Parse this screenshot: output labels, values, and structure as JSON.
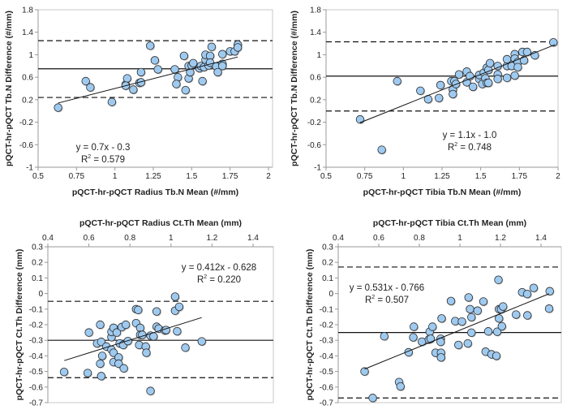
{
  "chart_data": [
    {
      "type": "scatter",
      "title": "",
      "xlabel": "pQCT-hr-pQCT Radius Tb.N Mean (#/mm)",
      "ylabel": "pQCT-hr-pQCT Tb.N Difference (#/mm)",
      "xlim": [
        0.5,
        2
      ],
      "ylim": [
        -1,
        1.8
      ],
      "xticks": [
        "0.5",
        "0.75",
        "1",
        "1.25",
        "1.5",
        "1.75",
        "2"
      ],
      "yticks": [
        "-1",
        "-0.6",
        "-0.2",
        "0.2",
        "0.6",
        "1",
        "1.4",
        "1.8"
      ],
      "x_axis_position": "bottom",
      "equation": "y = 0.7x - 0.3",
      "r2_label": "R",
      "r2_value": " = 0.579",
      "trend": {
        "slope": 0.7,
        "intercept": -0.3,
        "x_range": [
          0.63,
          1.8
        ]
      },
      "mean_diff": 0.75,
      "upper_loa": 1.25,
      "lower_loa": 0.24,
      "points": [
        [
          0.63,
          0.06
        ],
        [
          0.81,
          0.53
        ],
        [
          0.84,
          0.42
        ],
        [
          0.98,
          0.16
        ],
        [
          1.07,
          0.47
        ],
        [
          1.08,
          0.58
        ],
        [
          1.07,
          0.45
        ],
        [
          1.12,
          0.38
        ],
        [
          1.16,
          0.5
        ],
        [
          1.17,
          0.51
        ],
        [
          1.17,
          0.69
        ],
        [
          1.23,
          1.16
        ],
        [
          1.26,
          0.9
        ],
        [
          1.28,
          0.74
        ],
        [
          1.39,
          0.74
        ],
        [
          1.41,
          0.6
        ],
        [
          1.4,
          0.48
        ],
        [
          1.45,
          0.98
        ],
        [
          1.46,
          0.37
        ],
        [
          1.48,
          0.8
        ],
        [
          1.48,
          0.58
        ],
        [
          1.49,
          0.69
        ],
        [
          1.5,
          0.81
        ],
        [
          1.51,
          0.85
        ],
        [
          1.55,
          0.76
        ],
        [
          1.56,
          0.8
        ],
        [
          1.57,
          0.53
        ],
        [
          1.58,
          0.78
        ],
        [
          1.59,
          0.91
        ],
        [
          1.59,
          1.0
        ],
        [
          1.61,
          0.81
        ],
        [
          1.62,
          0.98
        ],
        [
          1.62,
          0.86
        ],
        [
          1.63,
          1.14
        ],
        [
          1.66,
          0.79
        ],
        [
          1.67,
          0.69
        ],
        [
          1.7,
          1.01
        ],
        [
          1.7,
          0.84
        ],
        [
          1.7,
          0.8
        ],
        [
          1.75,
          1.06
        ],
        [
          1.78,
          1.06
        ],
        [
          1.8,
          1.18
        ],
        [
          1.8,
          1.13
        ]
      ]
    },
    {
      "type": "scatter",
      "title": "",
      "xlabel": "pQCT-hr-pQCT Tibia Tb.N Mean (#/mm)",
      "ylabel": "pQCT-hr-pQCT Tb.N Difference (#/mm)",
      "xlim": [
        0.5,
        2
      ],
      "ylim": [
        -1,
        1.8
      ],
      "xticks": [
        "0.5",
        "0.75",
        "1",
        "1.25",
        "1.5",
        "1.75",
        "2"
      ],
      "yticks": [
        "-1",
        "-0.6",
        "-0.2",
        "0.2",
        "0.6",
        "1",
        "1.4",
        "1.8"
      ],
      "x_axis_position": "bottom",
      "equation": "y = 1.1x - 1.0",
      "r2_label": "R",
      "r2_value": " = 0.748",
      "trend": {
        "slope": 1.1,
        "intercept": -1.0,
        "x_range": [
          0.72,
          1.98
        ]
      },
      "mean_diff": 0.62,
      "upper_loa": 1.23,
      "lower_loa": 0.0,
      "points": [
        [
          0.72,
          -0.15
        ],
        [
          0.86,
          -0.69
        ],
        [
          0.96,
          0.53
        ],
        [
          1.11,
          0.36
        ],
        [
          1.16,
          0.21
        ],
        [
          1.23,
          0.23
        ],
        [
          1.24,
          0.46
        ],
        [
          1.31,
          0.53
        ],
        [
          1.32,
          0.38
        ],
        [
          1.32,
          0.3
        ],
        [
          1.33,
          0.53
        ],
        [
          1.34,
          0.48
        ],
        [
          1.36,
          0.65
        ],
        [
          1.41,
          0.7
        ],
        [
          1.41,
          0.51
        ],
        [
          1.43,
          0.62
        ],
        [
          1.45,
          0.43
        ],
        [
          1.49,
          0.57
        ],
        [
          1.49,
          0.64
        ],
        [
          1.51,
          0.48
        ],
        [
          1.52,
          0.68
        ],
        [
          1.53,
          0.58
        ],
        [
          1.54,
          0.77
        ],
        [
          1.54,
          0.5
        ],
        [
          1.55,
          0.73
        ],
        [
          1.55,
          0.5
        ],
        [
          1.56,
          0.85
        ],
        [
          1.61,
          0.8
        ],
        [
          1.61,
          0.65
        ],
        [
          1.61,
          0.57
        ],
        [
          1.67,
          0.59
        ],
        [
          1.67,
          0.8
        ],
        [
          1.67,
          0.92
        ],
        [
          1.7,
          0.8
        ],
        [
          1.72,
          1.01
        ],
        [
          1.72,
          0.63
        ],
        [
          1.72,
          0.93
        ],
        [
          1.74,
          0.87
        ],
        [
          1.74,
          0.78
        ],
        [
          1.77,
          1.05
        ],
        [
          1.78,
          0.9
        ],
        [
          1.8,
          1.05
        ],
        [
          1.85,
          0.99
        ],
        [
          1.97,
          1.22
        ]
      ]
    },
    {
      "type": "scatter",
      "title": "",
      "xlabel": "pQCT-hr-pQCT Radius Ct.Th Mean (mm)",
      "ylabel": "pQCT-hr-pQCT Ct.Th Difference (mm)",
      "xlim": [
        0.4,
        1.4
      ],
      "ylim": [
        -0.7,
        0.3
      ],
      "xticks": [
        "0.4",
        "0.6",
        "0.8",
        "1",
        "1.2",
        "1.4"
      ],
      "yticks": [
        "-0.7",
        "-0.6",
        "-0.5",
        "-0.4",
        "-0.3",
        "-0.2",
        "-0.1",
        "0",
        "0.1",
        "0.2",
        "0.3"
      ],
      "x_axis_position": "top",
      "equation": "y = 0.412x - 0.628",
      "r2_label": "R",
      "r2_value": " = 0.220",
      "trend": {
        "slope": 0.412,
        "intercept": -0.628,
        "x_range": [
          0.48,
          1.15
        ]
      },
      "mean_diff": -0.3,
      "upper_loa": -0.05,
      "lower_loa": -0.54,
      "points": [
        [
          0.479,
          -0.503
        ],
        [
          0.594,
          -0.51
        ],
        [
          0.6,
          -0.25
        ],
        [
          0.64,
          -0.32
        ],
        [
          0.655,
          -0.2
        ],
        [
          0.655,
          -0.45
        ],
        [
          0.66,
          -0.31
        ],
        [
          0.66,
          -0.53
        ],
        [
          0.665,
          -0.4
        ],
        [
          0.685,
          -0.34
        ],
        [
          0.71,
          -0.28
        ],
        [
          0.71,
          -0.245
        ],
        [
          0.71,
          -0.36
        ],
        [
          0.72,
          -0.22
        ],
        [
          0.72,
          -0.38
        ],
        [
          0.72,
          -0.44
        ],
        [
          0.736,
          -0.25
        ],
        [
          0.745,
          -0.41
        ],
        [
          0.745,
          -0.45
        ],
        [
          0.75,
          -0.32
        ],
        [
          0.76,
          -0.215
        ],
        [
          0.767,
          -0.33
        ],
        [
          0.77,
          -0.48
        ],
        [
          0.78,
          -0.2
        ],
        [
          0.79,
          -0.305
        ],
        [
          0.83,
          -0.1
        ],
        [
          0.83,
          -0.19
        ],
        [
          0.84,
          -0.105
        ],
        [
          0.845,
          -0.33
        ],
        [
          0.85,
          -0.22
        ],
        [
          0.85,
          -0.265
        ],
        [
          0.86,
          -0.265
        ],
        [
          0.877,
          -0.34
        ],
        [
          0.88,
          -0.38
        ],
        [
          0.9,
          -0.625
        ],
        [
          0.9,
          -0.27
        ],
        [
          0.915,
          -0.275
        ],
        [
          0.93,
          -0.115
        ],
        [
          0.93,
          -0.213
        ],
        [
          0.94,
          -0.225
        ],
        [
          0.97,
          -0.237
        ],
        [
          0.976,
          -0.234
        ],
        [
          1.02,
          -0.02
        ],
        [
          1.02,
          -0.11
        ],
        [
          1.04,
          -0.085
        ],
        [
          1.03,
          -0.242
        ],
        [
          1.07,
          -0.347
        ],
        [
          1.15,
          -0.307
        ]
      ]
    },
    {
      "type": "scatter",
      "title": "",
      "xlabel": "pQCT-hr-pQCT Tibia Ct.Th Mean (mm)",
      "ylabel": "pQCT-hr-pQCT Ct.Th Difference (mm)",
      "xlim": [
        0.4,
        1.4
      ],
      "ylim": [
        -0.7,
        0.3
      ],
      "xticks": [
        "0.4",
        "0.6",
        "0.8",
        "1",
        "1.2",
        "1.4"
      ],
      "yticks": [
        "-0.7",
        "-0.6",
        "-0.5",
        "-0.4",
        "-0.3",
        "-0.2",
        "-0.1",
        "0",
        "0.1",
        "0.2",
        "0.3"
      ],
      "x_axis_position": "top",
      "equation": "y = 0.531x - 0.766",
      "r2_label": "R",
      "r2_value": " = 0.507",
      "trend": {
        "slope": 0.531,
        "intercept": -0.766,
        "x_range": [
          0.53,
          1.44
        ]
      },
      "mean_diff": -0.25,
      "upper_loa": 0.17,
      "lower_loa": -0.67,
      "points": [
        [
          0.53,
          -0.5
        ],
        [
          0.57,
          -0.67
        ],
        [
          0.627,
          -0.274
        ],
        [
          0.7,
          -0.568
        ],
        [
          0.707,
          -0.596
        ],
        [
          0.747,
          -0.377
        ],
        [
          0.773,
          -0.213
        ],
        [
          0.77,
          -0.281
        ],
        [
          0.813,
          -0.309
        ],
        [
          0.847,
          -0.295
        ],
        [
          0.851,
          -0.245
        ],
        [
          0.856,
          -0.29
        ],
        [
          0.865,
          -0.213
        ],
        [
          0.88,
          -0.38
        ],
        [
          0.905,
          -0.29
        ],
        [
          0.905,
          -0.31
        ],
        [
          0.907,
          -0.38
        ],
        [
          0.907,
          -0.41
        ],
        [
          0.91,
          -0.16
        ],
        [
          0.956,
          -0.048
        ],
        [
          0.977,
          -0.177
        ],
        [
          0.993,
          -0.33
        ],
        [
          1.01,
          -0.18
        ],
        [
          1.039,
          -0.32
        ],
        [
          1.043,
          -0.025
        ],
        [
          1.05,
          -0.1
        ],
        [
          1.057,
          -0.152
        ],
        [
          1.057,
          -0.251
        ],
        [
          1.087,
          -0.11
        ],
        [
          1.116,
          -0.051
        ],
        [
          1.127,
          -0.373
        ],
        [
          1.14,
          -0.243
        ],
        [
          1.156,
          -0.39
        ],
        [
          1.18,
          -0.4
        ],
        [
          1.184,
          -0.245
        ],
        [
          1.19,
          0.088
        ],
        [
          1.193,
          -0.1
        ],
        [
          1.193,
          -0.16
        ],
        [
          1.203,
          -0.1
        ],
        [
          1.207,
          -0.21
        ],
        [
          1.213,
          -0.083
        ],
        [
          1.277,
          -0.135
        ],
        [
          1.307,
          0.008
        ],
        [
          1.332,
          -0.003
        ],
        [
          1.333,
          -0.14
        ],
        [
          1.364,
          0.036
        ],
        [
          1.443,
          0.015
        ],
        [
          1.44,
          -0.097
        ]
      ]
    }
  ],
  "colors": {
    "marker_fill": "#9fcaf0",
    "marker_stroke": "#2a2a2a",
    "line": "#111111",
    "frame": "#c8c8c8"
  }
}
